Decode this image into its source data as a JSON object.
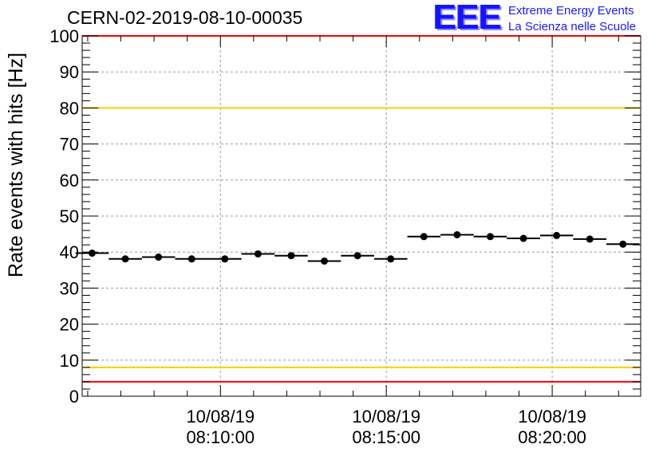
{
  "header": {
    "run_title": "CERN-02-2019-08-10-00035",
    "logo_text": "EEE",
    "logo_line1": "Extreme Energy Events",
    "logo_line2": "La Scienza nelle Scuole"
  },
  "colors": {
    "limit_outer": "#ff0000",
    "limit_inner": "#ffcc00",
    "points": "#000000",
    "grid": "#9a9a9a"
  },
  "chart_data": {
    "type": "scatter",
    "title": "CERN-02-2019-08-10-00035",
    "ylabel": "Rate events with hits [Hz]",
    "xlabel": "",
    "ylim": [
      0,
      100
    ],
    "yticks": [
      0,
      10,
      20,
      30,
      40,
      50,
      60,
      70,
      80,
      90,
      100
    ],
    "xlim": [
      "2019-08-10 08:05:50",
      "2019-08-10 08:22:40"
    ],
    "xticks": [
      {
        "time": "2019-08-10 08:10:00",
        "date": "10/08/19",
        "clock": "08:10:00"
      },
      {
        "time": "2019-08-10 08:15:00",
        "date": "10/08/19",
        "clock": "08:15:00"
      },
      {
        "time": "2019-08-10 08:20:00",
        "date": "10/08/19",
        "clock": "08:20:00"
      }
    ],
    "grid": true,
    "bin_width_seconds": 60,
    "reference_lines": [
      {
        "y": 100,
        "color": "#ff0000"
      },
      {
        "y": 80,
        "color": "#ffcc00"
      },
      {
        "y": 8,
        "color": "#ffcc00"
      },
      {
        "y": 4,
        "color": "#ff0000"
      }
    ],
    "series": [
      {
        "x": [
          "2019-08-10 08:06:08",
          "2019-08-10 08:07:08",
          "2019-08-10 08:08:08",
          "2019-08-10 08:09:08",
          "2019-08-10 08:10:08",
          "2019-08-10 08:11:08",
          "2019-08-10 08:12:08",
          "2019-08-10 08:13:08",
          "2019-08-10 08:14:08",
          "2019-08-10 08:15:08",
          "2019-08-10 08:16:08",
          "2019-08-10 08:17:08",
          "2019-08-10 08:18:08",
          "2019-08-10 08:19:08",
          "2019-08-10 08:20:08",
          "2019-08-10 08:21:08",
          "2019-08-10 08:22:08"
        ],
        "values": [
          39.7,
          38.1,
          38.6,
          38.1,
          38.1,
          39.5,
          39.0,
          37.5,
          39.0,
          38.1,
          44.3,
          44.8,
          44.3,
          43.8,
          44.6,
          43.6,
          42.2
        ]
      }
    ]
  }
}
